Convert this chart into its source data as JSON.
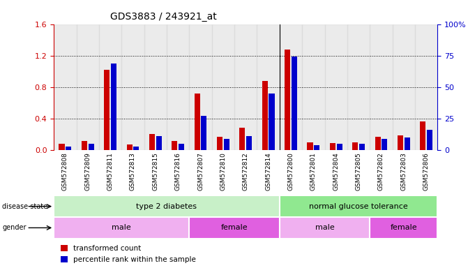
{
  "title": "GDS3883 / 243921_at",
  "samples": [
    "GSM572808",
    "GSM572809",
    "GSM572811",
    "GSM572813",
    "GSM572815",
    "GSM572816",
    "GSM572807",
    "GSM572810",
    "GSM572812",
    "GSM572814",
    "GSM572800",
    "GSM572801",
    "GSM572804",
    "GSM572805",
    "GSM572802",
    "GSM572803",
    "GSM572806"
  ],
  "red_values": [
    0.08,
    0.12,
    1.02,
    0.07,
    0.2,
    0.12,
    0.72,
    0.17,
    0.28,
    0.88,
    1.28,
    0.1,
    0.09,
    0.1,
    0.17,
    0.19,
    0.36
  ],
  "blue_pct": [
    3,
    5,
    69,
    3,
    11,
    5,
    27,
    9,
    11,
    45,
    74,
    4,
    5,
    5,
    9,
    10,
    16
  ],
  "ylim_left": [
    0,
    1.6
  ],
  "ylim_right": [
    0,
    100
  ],
  "yticks_left": [
    0.0,
    0.4,
    0.8,
    1.2,
    1.6
  ],
  "yticks_right": [
    0,
    25,
    50,
    75,
    100
  ],
  "t2d_count": 10,
  "ngt_count": 7,
  "male_t2d_count": 6,
  "female_t2d_count": 4,
  "male_ngt_count": 4,
  "female_ngt_count": 3,
  "colors": {
    "red_bar": "#cc0000",
    "blue_bar": "#0000cc",
    "disease_green_light": "#c8f0c8",
    "disease_green_dark": "#90e890",
    "gender_purple_light": "#f0b0f0",
    "gender_purple_dark": "#e060e0",
    "col_bg": "#d8d8d8",
    "text_red": "#cc0000",
    "text_blue": "#0000cc"
  },
  "legend": {
    "transformed_count": "transformed count",
    "percentile_rank": "percentile rank within the sample"
  }
}
